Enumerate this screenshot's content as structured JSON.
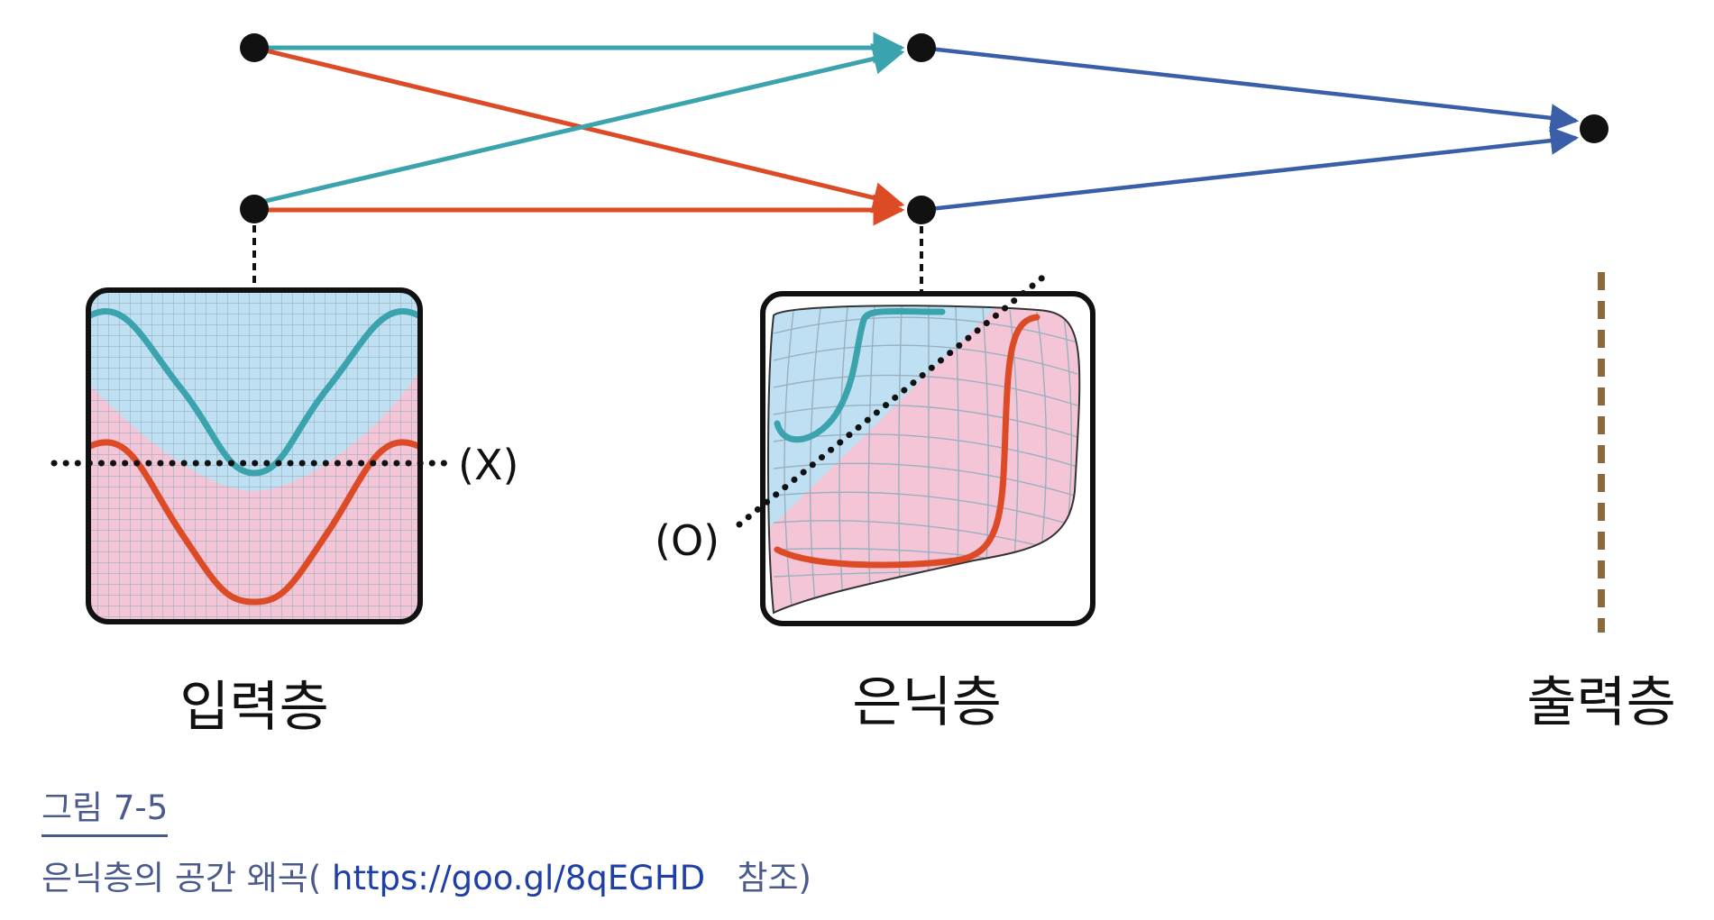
{
  "labels": {
    "input_layer": "입력층",
    "hidden_layer": "은닉층",
    "output_layer": "출력층",
    "marker_x": "(X)",
    "marker_o": "(O)"
  },
  "caption": {
    "title": "그림 7-5",
    "prefix": "은닉층의 공간 왜곡(",
    "url": "https://goo.gl/8qEGHD",
    "suffix": "참조)"
  },
  "colors": {
    "teal": "#3aa3ad",
    "orange": "#dc4a26",
    "blue": "#3b5ea8",
    "dark": "#111111",
    "bg_blue": "#bfe0f2",
    "bg_pink": "#f3c5d6",
    "grid": "#9ab0bf",
    "output_dash": "#8b6a3e",
    "caption": "#4a5a8c",
    "url": "#1f3fa8"
  },
  "icons": {
    "node": "filled-circle-node",
    "arrow": "arrowhead"
  }
}
